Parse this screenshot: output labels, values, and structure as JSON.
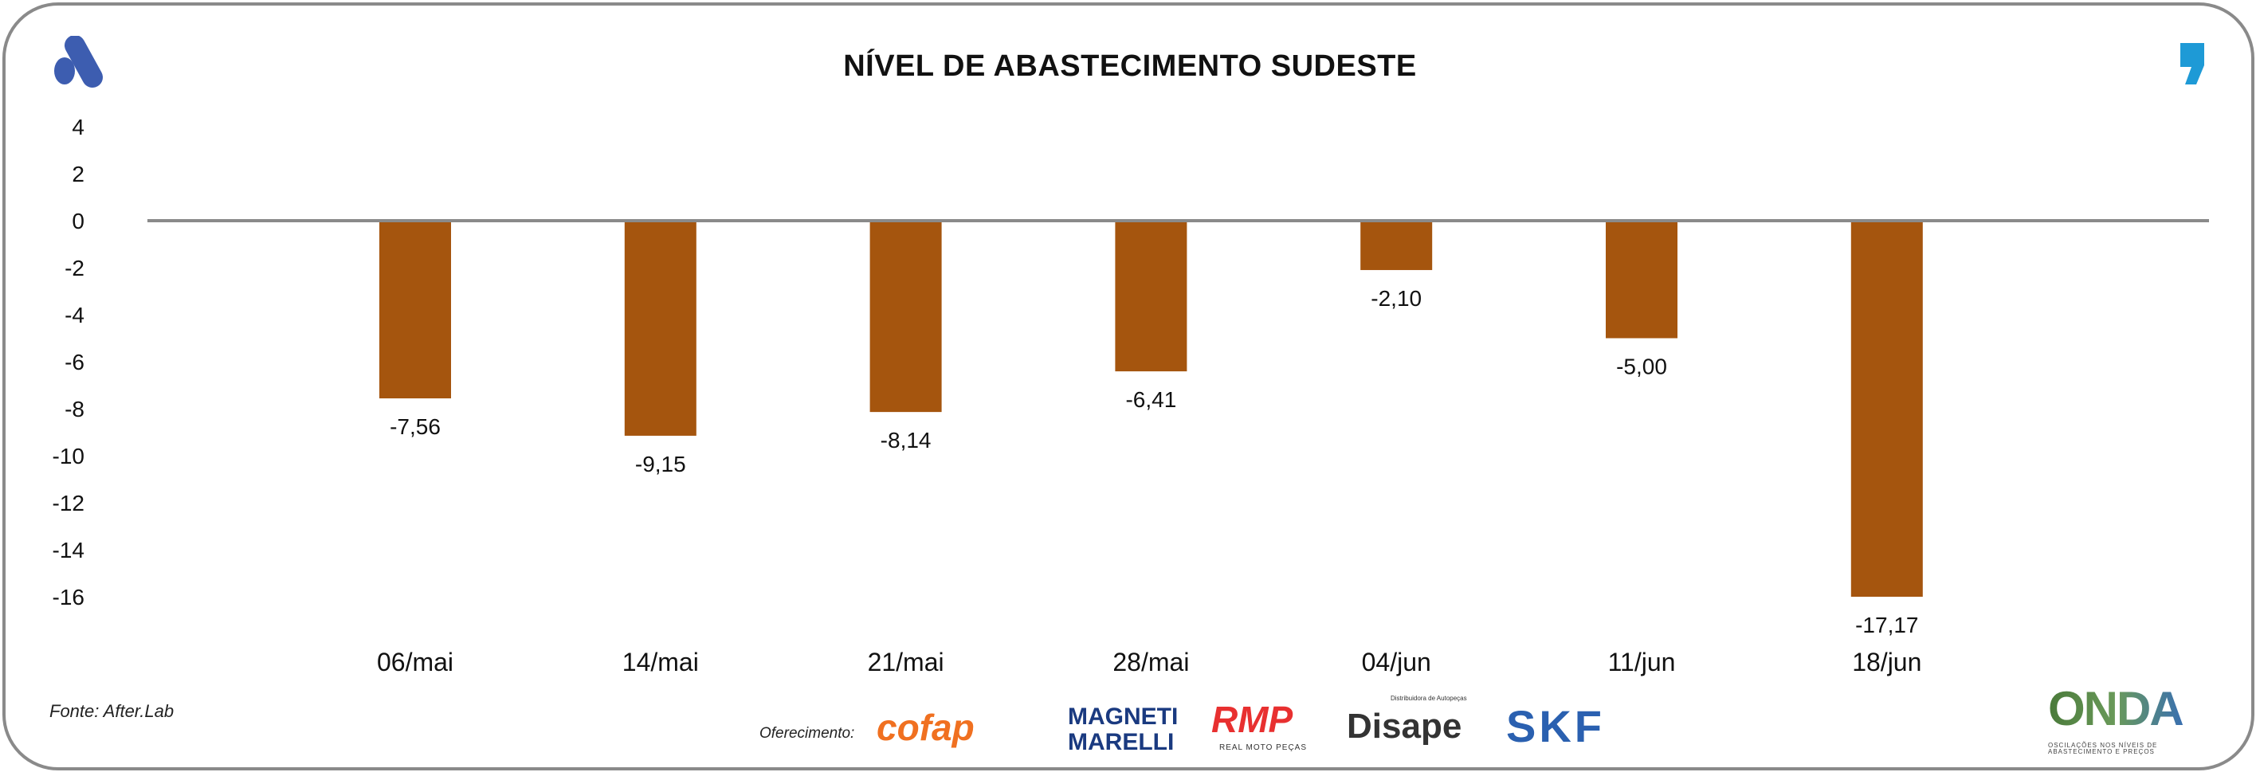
{
  "chart_data": {
    "type": "bar",
    "title": "NÍVEL DE ABASTECIMENTO SUDESTE",
    "categories": [
      "06/mai",
      "14/mai",
      "21/mai",
      "28/mai",
      "04/jun",
      "11/jun",
      "18/jun"
    ],
    "values": [
      -7.56,
      -9.15,
      -8.14,
      -6.41,
      -2.1,
      -5.0,
      -17.17
    ],
    "data_labels": [
      "-7,56",
      "-9,15",
      "-8,14",
      "-6,41",
      "-2,10",
      "-5,00",
      "-17,17"
    ],
    "y_ticks": [
      4,
      2,
      0,
      -2,
      -4,
      -6,
      -8,
      -10,
      -12,
      -14,
      -16
    ],
    "ylim": [
      -16,
      4
    ],
    "grid": false,
    "bar_color": "#a5550e",
    "zero_line_color": "#8a8a8a"
  },
  "footer": {
    "source": "Fonte: After.Lab",
    "sponsor_label": "Oferecimento:",
    "sponsors": [
      "cofap",
      "MAGNETI MARELLI",
      "RMP",
      "Disape",
      "SKF"
    ],
    "rmp_sub": "REAL MOTO PEÇAS",
    "disape_sub": "Distribuidora de Autopeças",
    "onda": "ONDA",
    "onda_sub": "OSCILAÇÕES NOS NÍVEIS DE ABASTECIMENTO E PREÇOS"
  },
  "icons": {
    "brand": "afterlab-logo-icon",
    "quote": "quote-icon"
  },
  "colors": {
    "brand_blue": "#3d5db0",
    "quote_blue": "#1e9ad6"
  }
}
